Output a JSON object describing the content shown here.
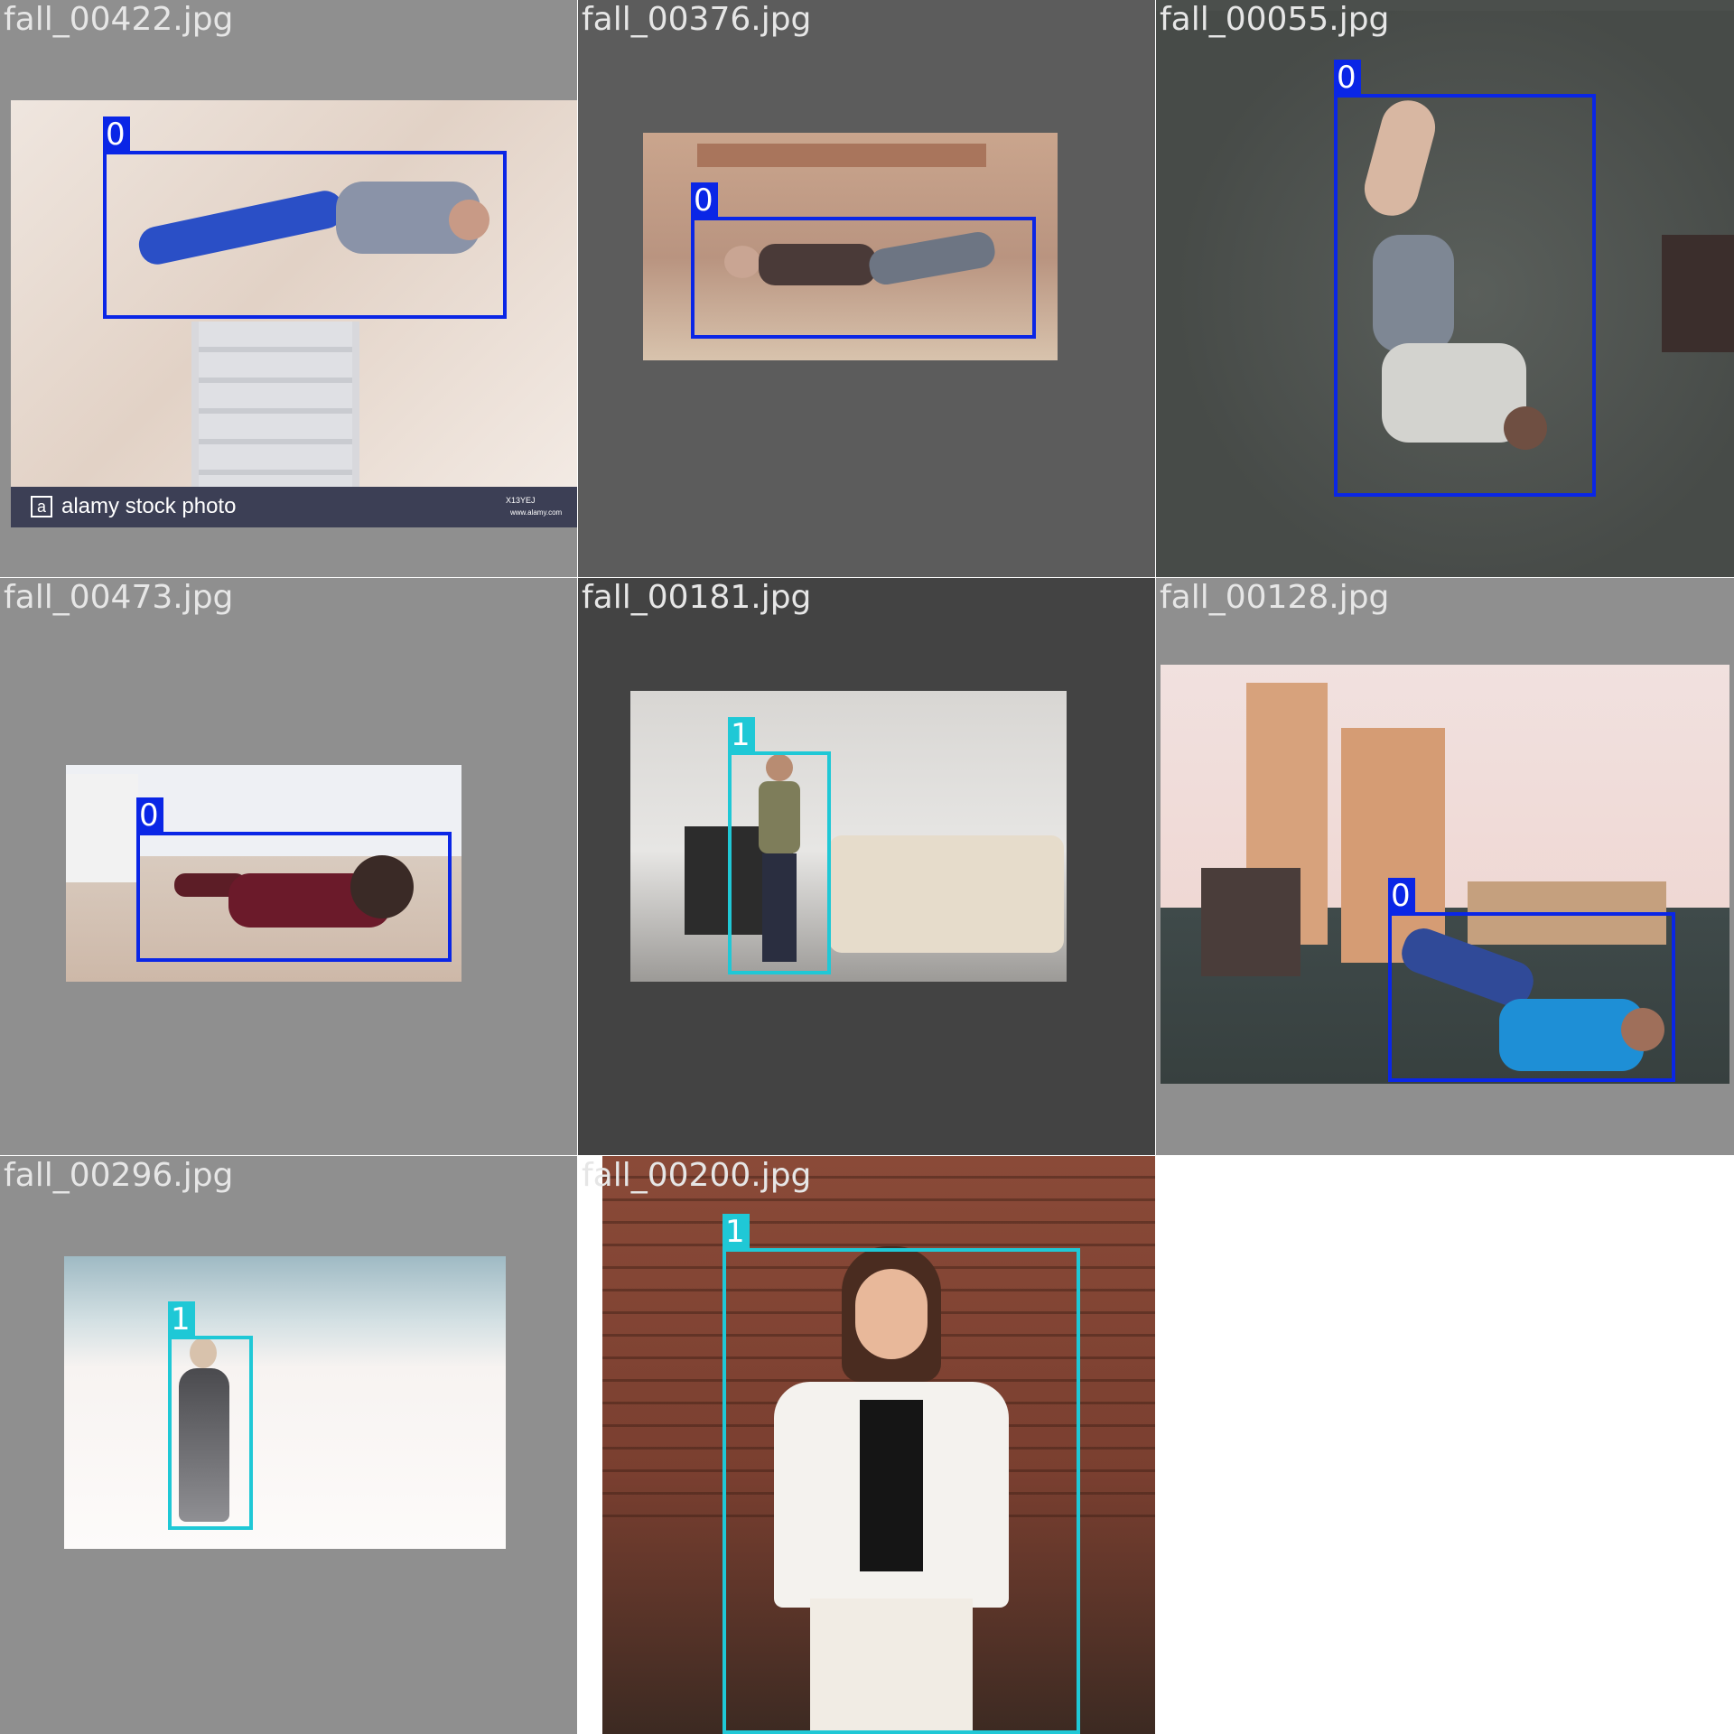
{
  "tiles": [
    {
      "filename": "fall_00422.jpg",
      "boxes": [
        {
          "label": "0"
        }
      ]
    },
    {
      "filename": "fall_00376.jpg",
      "boxes": [
        {
          "label": "0"
        }
      ]
    },
    {
      "filename": "fall_00055.jpg",
      "boxes": [
        {
          "label": "0"
        }
      ]
    },
    {
      "filename": "fall_00473.jpg",
      "boxes": [
        {
          "label": "0"
        }
      ]
    },
    {
      "filename": "fall_00181.jpg",
      "boxes": [
        {
          "label": "1"
        }
      ]
    },
    {
      "filename": "fall_00128.jpg",
      "boxes": [
        {
          "label": "0"
        }
      ]
    },
    {
      "filename": "fall_00296.jpg",
      "boxes": [
        {
          "label": "1"
        }
      ]
    },
    {
      "filename": "fall_00200.jpg",
      "boxes": [
        {
          "label": "1"
        }
      ]
    }
  ],
  "watermarks": {
    "alamy_text": "alamy stock photo",
    "alamy_logo_letter": "a",
    "alamy_code": "X13YEJ",
    "alamy_url": "www.alamy.com"
  },
  "colors": {
    "class_0": "#0a26e6",
    "class_1": "#1fc8d6"
  }
}
